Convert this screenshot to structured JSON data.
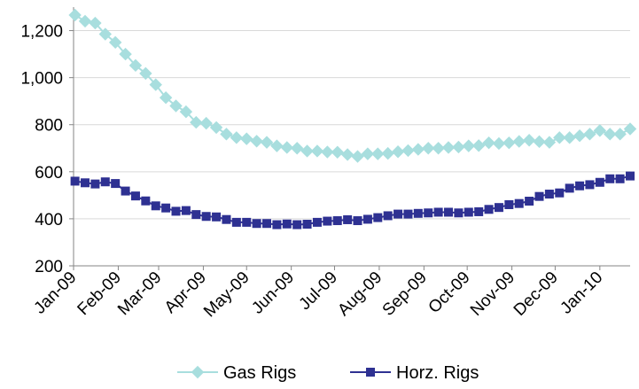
{
  "chart_data": {
    "type": "line",
    "title": "",
    "xlabel": "",
    "ylabel": "",
    "ylim": [
      200,
      1300
    ],
    "yticks": [
      200,
      400,
      600,
      800,
      1000,
      1200
    ],
    "ytick_labels": [
      "200",
      "400",
      "600",
      "800",
      "1,000",
      "1,200"
    ],
    "xlim": [
      "2009-01-01",
      "2010-01-22"
    ],
    "xticks": [
      "2009-01-01",
      "2009-02-01",
      "2009-03-01",
      "2009-04-01",
      "2009-05-01",
      "2009-06-01",
      "2009-07-01",
      "2009-08-01",
      "2009-09-01",
      "2009-10-01",
      "2009-11-01",
      "2009-12-01",
      "2010-01-01"
    ],
    "xtick_labels": [
      "Jan-09",
      "Feb-09",
      "Mar-09",
      "Apr-09",
      "May-09",
      "Jun-09",
      "Jul-09",
      "Aug-09",
      "Sep-09",
      "Oct-09",
      "Nov-09",
      "Dec-09",
      "Jan-10"
    ],
    "grid": "horizontal",
    "legend_position": "bottom",
    "series": [
      {
        "name": "Gas Rigs",
        "color": "#a8dede",
        "marker": "diamond",
        "x": [
          "2009-01-02",
          "2009-01-09",
          "2009-01-16",
          "2009-01-23",
          "2009-01-30",
          "2009-02-06",
          "2009-02-13",
          "2009-02-20",
          "2009-02-27",
          "2009-03-06",
          "2009-03-13",
          "2009-03-20",
          "2009-03-27",
          "2009-04-03",
          "2009-04-10",
          "2009-04-17",
          "2009-04-24",
          "2009-05-01",
          "2009-05-08",
          "2009-05-15",
          "2009-05-22",
          "2009-05-29",
          "2009-06-05",
          "2009-06-12",
          "2009-06-19",
          "2009-06-26",
          "2009-07-03",
          "2009-07-10",
          "2009-07-17",
          "2009-07-24",
          "2009-07-31",
          "2009-08-07",
          "2009-08-14",
          "2009-08-21",
          "2009-08-28",
          "2009-09-04",
          "2009-09-11",
          "2009-09-18",
          "2009-09-25",
          "2009-10-02",
          "2009-10-09",
          "2009-10-16",
          "2009-10-23",
          "2009-10-30",
          "2009-11-06",
          "2009-11-13",
          "2009-11-20",
          "2009-11-27",
          "2009-12-04",
          "2009-12-11",
          "2009-12-18",
          "2009-12-25",
          "2010-01-01",
          "2010-01-08",
          "2010-01-15",
          "2010-01-22"
        ],
        "values": [
          1266,
          1240,
          1232,
          1185,
          1150,
          1100,
          1052,
          1018,
          970,
          915,
          880,
          855,
          810,
          806,
          788,
          760,
          745,
          740,
          730,
          725,
          710,
          703,
          700,
          688,
          688,
          684,
          683,
          673,
          665,
          676,
          676,
          678,
          685,
          690,
          695,
          700,
          700,
          703,
          705,
          710,
          711,
          723,
          720,
          723,
          729,
          734,
          728,
          725,
          745,
          745,
          753,
          760,
          775,
          760,
          760,
          782
        ]
      },
      {
        "name": "Horz. Rigs",
        "color": "#2e3192",
        "marker": "square",
        "x": [
          "2009-01-02",
          "2009-01-09",
          "2009-01-16",
          "2009-01-23",
          "2009-01-30",
          "2009-02-06",
          "2009-02-13",
          "2009-02-20",
          "2009-02-27",
          "2009-03-06",
          "2009-03-13",
          "2009-03-20",
          "2009-03-27",
          "2009-04-03",
          "2009-04-10",
          "2009-04-17",
          "2009-04-24",
          "2009-05-01",
          "2009-05-08",
          "2009-05-15",
          "2009-05-22",
          "2009-05-29",
          "2009-06-05",
          "2009-06-12",
          "2009-06-19",
          "2009-06-26",
          "2009-07-03",
          "2009-07-10",
          "2009-07-17",
          "2009-07-24",
          "2009-07-31",
          "2009-08-07",
          "2009-08-14",
          "2009-08-21",
          "2009-08-28",
          "2009-09-04",
          "2009-09-11",
          "2009-09-18",
          "2009-09-25",
          "2009-10-02",
          "2009-10-09",
          "2009-10-16",
          "2009-10-23",
          "2009-10-30",
          "2009-11-06",
          "2009-11-13",
          "2009-11-20",
          "2009-11-27",
          "2009-12-04",
          "2009-12-11",
          "2009-12-18",
          "2009-12-25",
          "2010-01-01",
          "2010-01-08",
          "2010-01-15",
          "2010-01-22"
        ],
        "values": [
          560,
          553,
          548,
          557,
          550,
          518,
          497,
          476,
          455,
          446,
          432,
          435,
          418,
          410,
          408,
          397,
          385,
          385,
          380,
          380,
          375,
          378,
          375,
          377,
          385,
          390,
          392,
          396,
          392,
          398,
          405,
          413,
          420,
          420,
          423,
          425,
          428,
          428,
          425,
          428,
          430,
          440,
          448,
          460,
          465,
          475,
          495,
          505,
          510,
          530,
          540,
          545,
          555,
          570,
          570,
          582
        ]
      }
    ]
  }
}
